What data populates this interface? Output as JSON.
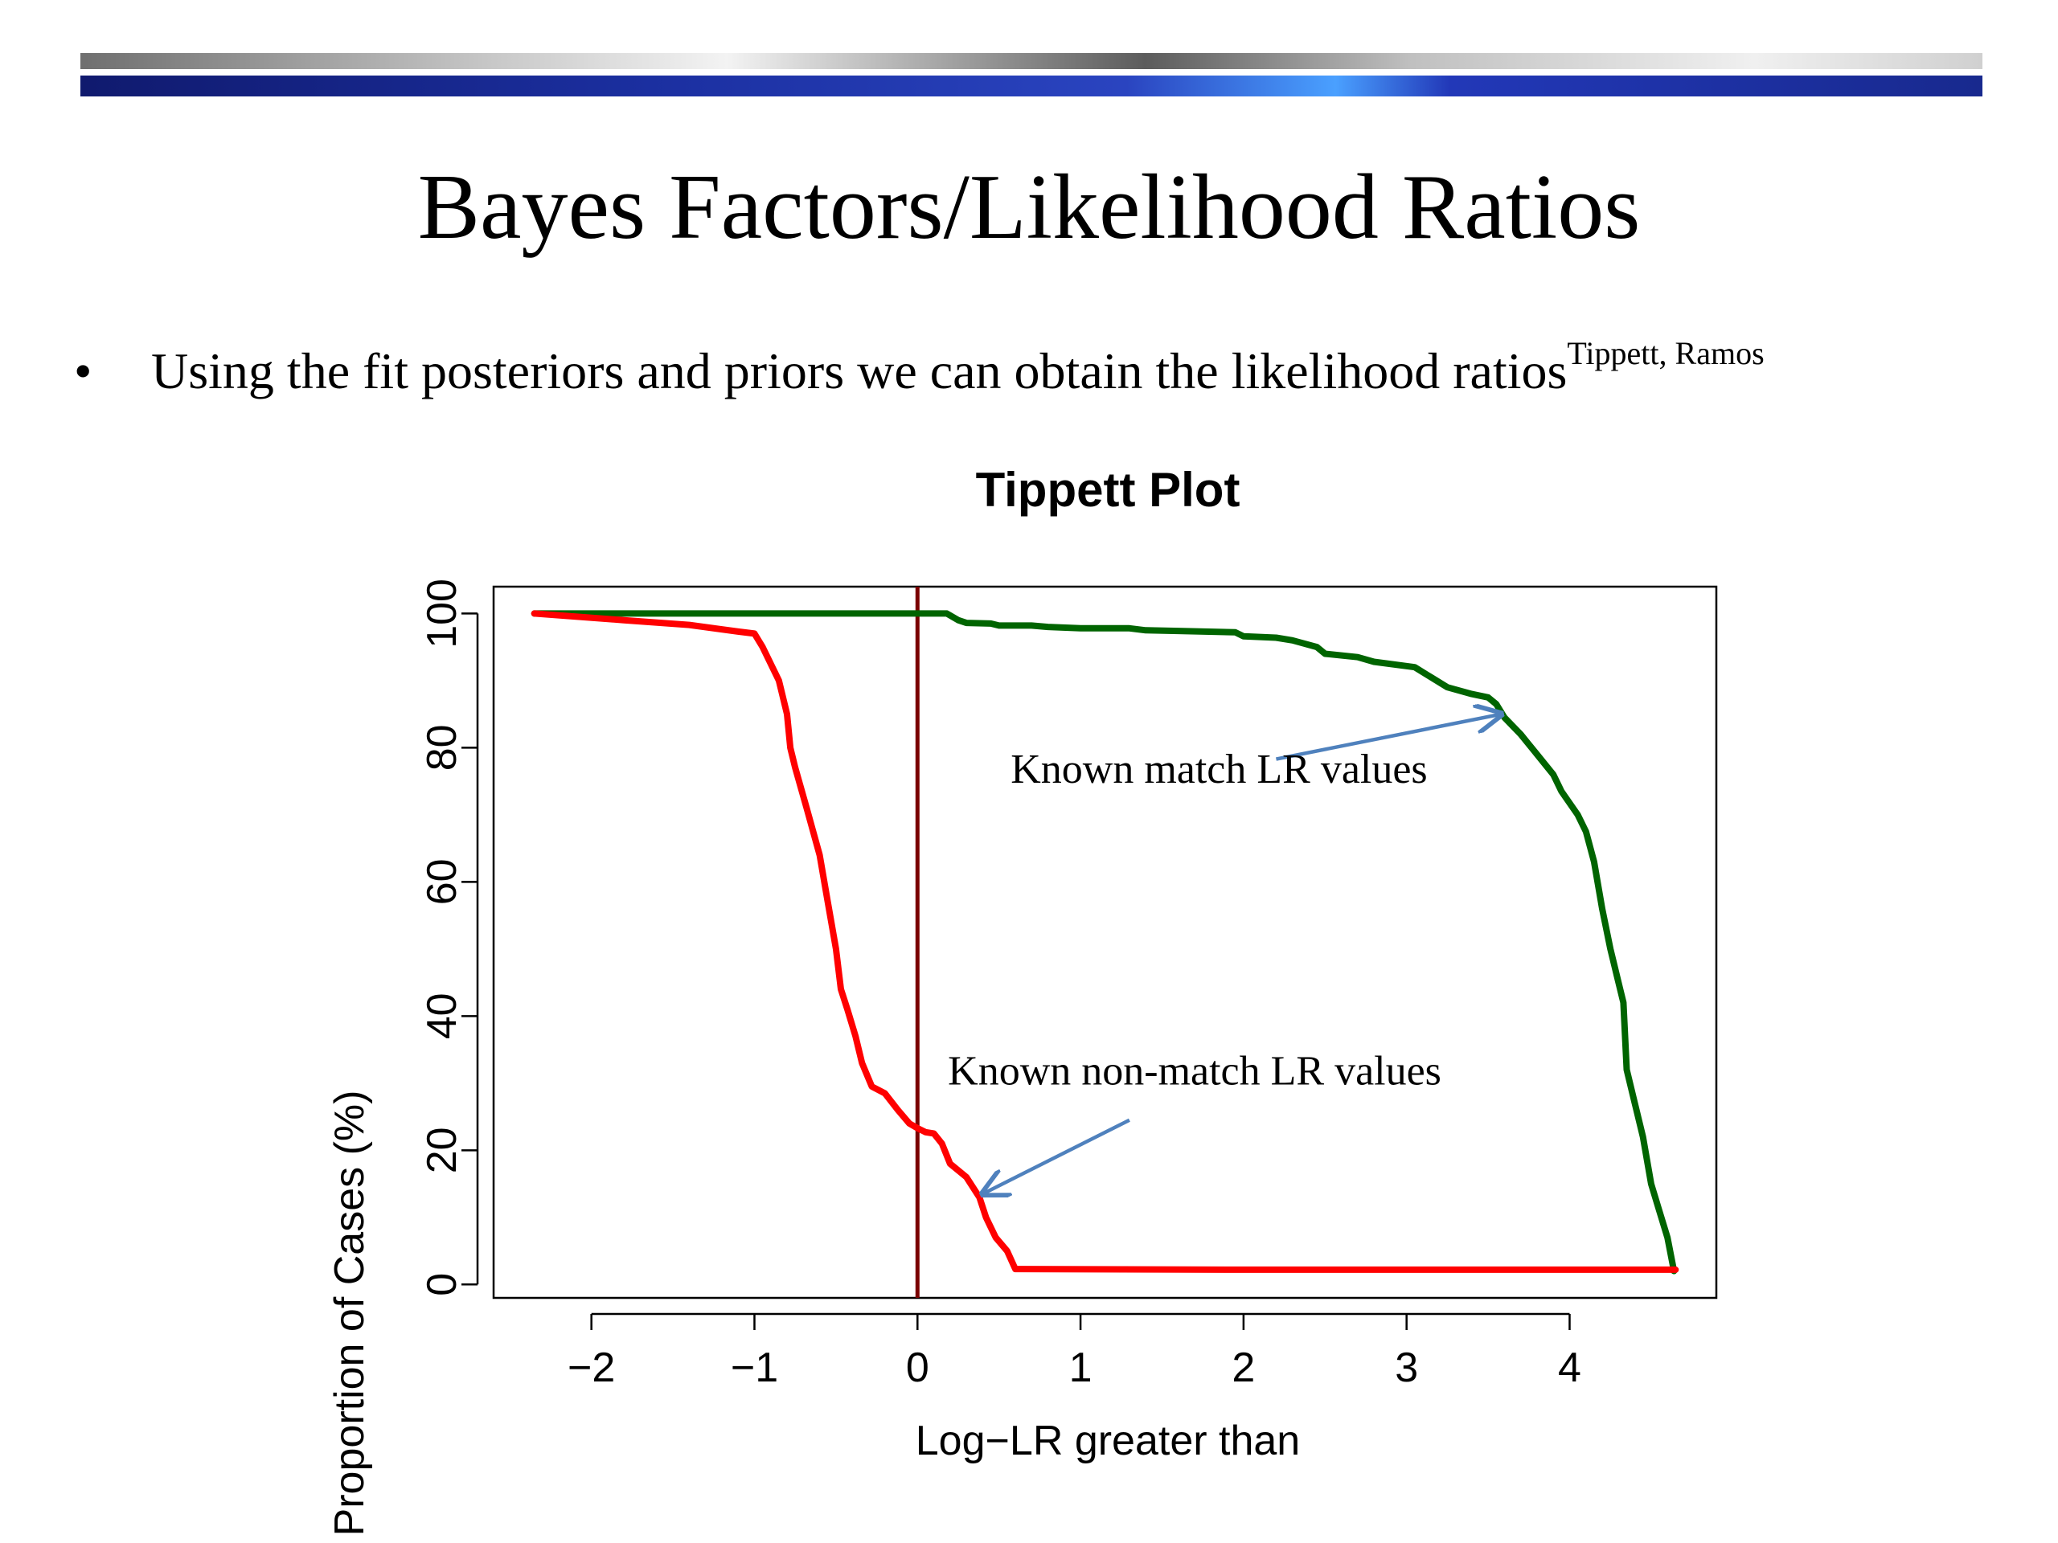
{
  "slide": {
    "title": "Bayes Factors/Likelihood Ratios",
    "bullet": {
      "marker": "•",
      "text": "Using the fit posteriors and priors we can obtain the likelihood ratios",
      "superscript": "Tippett, Ramos"
    }
  },
  "chart_data": {
    "type": "line",
    "title": "Tippett Plot",
    "xlabel": "Log−LR greater than",
    "ylabel": "Proportion of Cases (%)",
    "xlim": [
      -2.6,
      4.9
    ],
    "ylim": [
      -2,
      104
    ],
    "x_ticks": [
      -2,
      -1,
      0,
      1,
      2,
      3,
      4
    ],
    "x_tick_labels": [
      "−2",
      "−1",
      "0",
      "1",
      "2",
      "3",
      "4"
    ],
    "y_ticks": [
      0,
      20,
      40,
      60,
      80,
      100
    ],
    "y_tick_labels": [
      "0",
      "20",
      "40",
      "60",
      "80",
      "100"
    ],
    "grid": false,
    "reference_line": {
      "x": 0,
      "color": "#7a0000"
    },
    "series": [
      {
        "color": "#006400",
        "points": [
          [
            -2.35,
            100
          ],
          [
            0.0,
            100
          ],
          [
            0.18,
            100
          ],
          [
            0.25,
            99
          ],
          [
            0.3,
            98.6
          ],
          [
            0.45,
            98.5
          ],
          [
            0.5,
            98.2
          ],
          [
            0.7,
            98.2
          ],
          [
            0.8,
            98
          ],
          [
            1.0,
            97.8
          ],
          [
            1.3,
            97.8
          ],
          [
            1.4,
            97.5
          ],
          [
            1.6,
            97.4
          ],
          [
            1.95,
            97.2
          ],
          [
            2.0,
            96.6
          ],
          [
            2.2,
            96.4
          ],
          [
            2.3,
            96
          ],
          [
            2.45,
            95
          ],
          [
            2.5,
            94
          ],
          [
            2.7,
            93.5
          ],
          [
            2.8,
            92.8
          ],
          [
            3.05,
            92
          ],
          [
            3.15,
            90.5
          ],
          [
            3.25,
            89
          ],
          [
            3.4,
            88
          ],
          [
            3.5,
            87.5
          ],
          [
            3.55,
            86.5
          ],
          [
            3.6,
            84.5
          ],
          [
            3.7,
            82
          ],
          [
            3.8,
            79
          ],
          [
            3.9,
            76
          ],
          [
            3.95,
            73.5
          ],
          [
            4.05,
            70
          ],
          [
            4.1,
            67.5
          ],
          [
            4.15,
            63
          ],
          [
            4.2,
            56
          ],
          [
            4.25,
            50
          ],
          [
            4.3,
            45
          ],
          [
            4.33,
            42
          ],
          [
            4.35,
            32
          ],
          [
            4.4,
            27
          ],
          [
            4.45,
            22
          ],
          [
            4.5,
            15
          ],
          [
            4.55,
            11
          ],
          [
            4.6,
            7
          ],
          [
            4.64,
            2
          ]
        ]
      },
      {
        "color": "#ff0000",
        "points": [
          [
            -2.35,
            100
          ],
          [
            -1.8,
            99
          ],
          [
            -1.4,
            98.3
          ],
          [
            -1.1,
            97.3
          ],
          [
            -1.0,
            97
          ],
          [
            -0.95,
            95
          ],
          [
            -0.85,
            90
          ],
          [
            -0.8,
            85
          ],
          [
            -0.78,
            80
          ],
          [
            -0.75,
            77
          ],
          [
            -0.68,
            71
          ],
          [
            -0.6,
            64
          ],
          [
            -0.55,
            57
          ],
          [
            -0.5,
            50
          ],
          [
            -0.47,
            44
          ],
          [
            -0.43,
            41
          ],
          [
            -0.38,
            37
          ],
          [
            -0.34,
            33
          ],
          [
            -0.28,
            29.5
          ],
          [
            -0.2,
            28.5
          ],
          [
            -0.12,
            26
          ],
          [
            -0.05,
            24
          ],
          [
            0.0,
            23.3
          ],
          [
            0.05,
            22.7
          ],
          [
            0.1,
            22.5
          ],
          [
            0.15,
            21
          ],
          [
            0.2,
            18
          ],
          [
            0.3,
            16
          ],
          [
            0.38,
            13
          ],
          [
            0.42,
            10
          ],
          [
            0.48,
            7
          ],
          [
            0.55,
            5
          ],
          [
            0.6,
            2.3
          ],
          [
            2.0,
            2.2
          ],
          [
            4.65,
            2.2
          ]
        ]
      }
    ],
    "annotations": [
      {
        "text": "Known match LR values",
        "text_at": [
          1.85,
          74.8
        ],
        "arrow_from": [
          2.2,
          78.3
        ],
        "arrow_to": [
          3.58,
          85
        ],
        "color": "#4f81bd"
      },
      {
        "text": "Known non-match LR values",
        "text_at": [
          1.7,
          29.8
        ],
        "arrow_from": [
          1.3,
          24.5
        ],
        "arrow_to": [
          0.4,
          13.5
        ],
        "color": "#4f81bd"
      }
    ]
  }
}
